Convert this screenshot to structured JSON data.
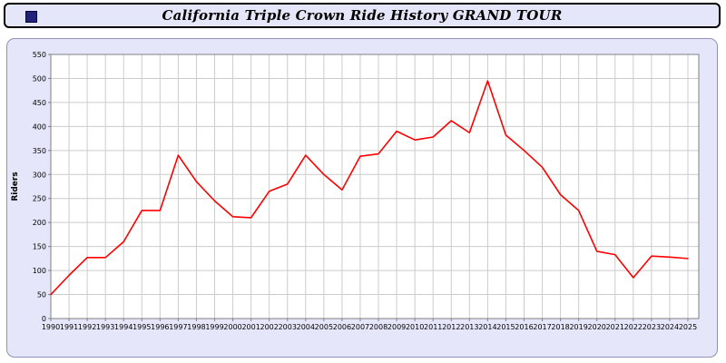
{
  "window": {
    "title": "California Triple Crown Ride History GRAND TOUR"
  },
  "chart_data": {
    "type": "line",
    "title": "California Triple Crown Ride History GRAND TOUR",
    "xlabel": "",
    "ylabel": "Riders",
    "x": [
      1990,
      1991,
      1992,
      1993,
      1994,
      1995,
      1996,
      1997,
      1998,
      1999,
      2000,
      2001,
      2002,
      2003,
      2004,
      2005,
      2006,
      2007,
      2008,
      2009,
      2010,
      2011,
      2012,
      2013,
      2014,
      2015,
      2016,
      2017,
      2018,
      2019,
      2020,
      2021,
      2022,
      2023,
      2024,
      2025
    ],
    "values": [
      50,
      90,
      127,
      127,
      160,
      225,
      225,
      340,
      285,
      245,
      212,
      210,
      265,
      280,
      340,
      300,
      268,
      338,
      343,
      390,
      372,
      378,
      412,
      387,
      495,
      382,
      350,
      315,
      258,
      225,
      140,
      133,
      85,
      130,
      128,
      125
    ],
    "ylim": [
      0,
      550
    ],
    "ytick_step": 50,
    "grid": true,
    "legend_position": "none",
    "line_color": "#ff0000"
  },
  "colors": {
    "titlebar_bg": "#e6e6fa",
    "panel_bg": "#e6e6fa",
    "plot_bg": "#ffffff",
    "grid": "#cccccc",
    "axis": "#808080",
    "text": "#000000"
  }
}
